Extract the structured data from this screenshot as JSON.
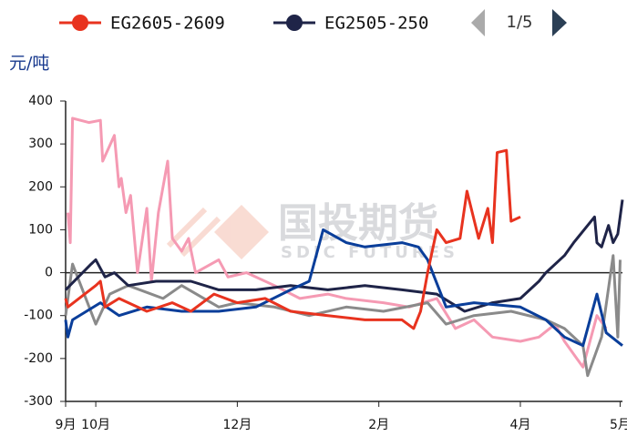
{
  "chart_data": {
    "type": "line",
    "y_label": "元/吨",
    "watermark": "国投期货",
    "watermark_sub": "SDIC FUTURES",
    "legend_page": "1/5",
    "xlim": [
      0,
      240
    ],
    "xticks": [
      {
        "value": 0,
        "label": "9月"
      },
      {
        "value": 13,
        "label": "10月"
      },
      {
        "value": 74,
        "label": "12月"
      },
      {
        "value": 135,
        "label": "2月"
      },
      {
        "value": 196,
        "label": "4月"
      },
      {
        "value": 239,
        "label": "5月"
      }
    ],
    "ylim": [
      -300,
      400
    ],
    "yticks": [
      -300,
      -200,
      -100,
      0,
      100,
      200,
      300,
      400
    ],
    "series": [
      {
        "color": "#f59ab3",
        "x": [
          1,
          2,
          3,
          10,
          15,
          16,
          21,
          23,
          24,
          26,
          28,
          31,
          35,
          37,
          40,
          44,
          46,
          50,
          53,
          56,
          66,
          70,
          78,
          90,
          101,
          113,
          121,
          137,
          148,
          160,
          168,
          176,
          184,
          196,
          204,
          211,
          215,
          223,
          229,
          233
        ],
        "values": [
          140,
          70,
          360,
          350,
          355,
          260,
          320,
          200,
          220,
          140,
          180,
          0,
          150,
          -20,
          140,
          260,
          80,
          50,
          80,
          0,
          30,
          -10,
          0,
          -30,
          -60,
          -50,
          -60,
          -70,
          -80,
          -60,
          -130,
          -110,
          -150,
          -160,
          -150,
          -120,
          -160,
          -220,
          -100,
          -130
        ]
      },
      {
        "color": "#8a8a8a",
        "x": [
          0,
          3,
          13,
          19,
          27,
          42,
          50,
          66,
          74,
          90,
          105,
          121,
          137,
          156,
          164,
          176,
          192,
          207,
          215,
          223,
          225,
          231,
          236,
          238,
          239
        ],
        "values": [
          -100,
          20,
          -120,
          -50,
          -30,
          -60,
          -30,
          -80,
          -70,
          -80,
          -100,
          -80,
          -90,
          -70,
          -120,
          -100,
          -90,
          -110,
          -130,
          -170,
          -240,
          -150,
          40,
          -150,
          30
        ]
      },
      {
        "name": "EG2505-250",
        "color": "#1f2448",
        "x": [
          0,
          11,
          13,
          17,
          21,
          27,
          39,
          54,
          66,
          82,
          97,
          113,
          129,
          145,
          160,
          172,
          184,
          196,
          204,
          207,
          215,
          219,
          228,
          229,
          231,
          234,
          236,
          238,
          240
        ],
        "values": [
          -40,
          20,
          30,
          -10,
          0,
          -30,
          -20,
          -20,
          -40,
          -40,
          -30,
          -40,
          -30,
          -40,
          -50,
          -90,
          -70,
          -60,
          -20,
          0,
          40,
          70,
          130,
          70,
          60,
          110,
          70,
          90,
          170
        ]
      },
      {
        "color": "#0a3e9a",
        "x": [
          0,
          1,
          3,
          15,
          23,
          35,
          50,
          66,
          82,
          97,
          105,
          111,
          121,
          129,
          145,
          152,
          156,
          164,
          176,
          196,
          207,
          215,
          223,
          229,
          233,
          240
        ],
        "values": [
          -110,
          -150,
          -110,
          -70,
          -100,
          -80,
          -90,
          -90,
          -80,
          -40,
          -20,
          100,
          70,
          60,
          70,
          60,
          30,
          -80,
          -70,
          -80,
          -110,
          -150,
          -170,
          -50,
          -140,
          -170
        ]
      },
      {
        "name": "EG2605-2609",
        "color": "#e8331f",
        "x": [
          0,
          1,
          13,
          15,
          17,
          23,
          35,
          46,
          54,
          64,
          74,
          86,
          97,
          113,
          129,
          145,
          150,
          153,
          156,
          160,
          164,
          170,
          173,
          178,
          182,
          184,
          186,
          190,
          192,
          196
        ],
        "values": [
          -60,
          -80,
          -30,
          -20,
          -80,
          -60,
          -90,
          -70,
          -90,
          -50,
          -70,
          -60,
          -90,
          -100,
          -110,
          -110,
          -130,
          -90,
          0,
          100,
          70,
          80,
          190,
          80,
          150,
          70,
          280,
          285,
          120,
          130
        ]
      }
    ]
  }
}
